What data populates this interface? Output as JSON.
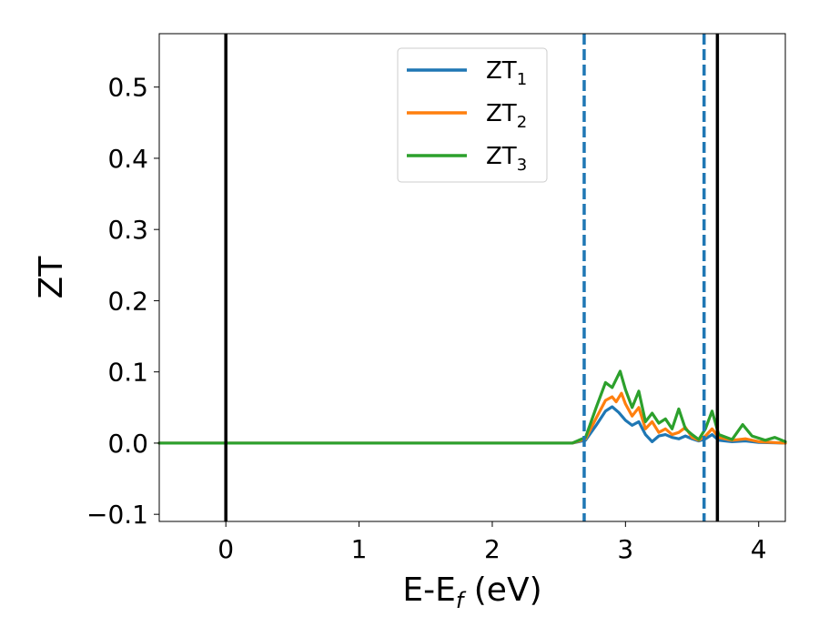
{
  "chart_data": {
    "type": "line",
    "xlabel": {
      "main": "E-E",
      "sub": "f",
      "unit": " (eV)"
    },
    "ylabel": "ZT",
    "xlim": [
      -0.5,
      4.2
    ],
    "ylim": [
      -0.11,
      0.575
    ],
    "xticks": [
      0,
      1,
      2,
      3,
      4
    ],
    "yticks": [
      -0.1,
      0.0,
      0.1,
      0.2,
      0.3,
      0.4,
      0.5
    ],
    "xtick_labels": [
      "0",
      "1",
      "2",
      "3",
      "4"
    ],
    "ytick_labels": [
      "−0.1",
      "0.0",
      "0.1",
      "0.2",
      "0.3",
      "0.4",
      "0.5"
    ],
    "grid": false,
    "legend_position": "top-center",
    "vlines": [
      {
        "x": 0.0,
        "style": "solid",
        "color": "#000000"
      },
      {
        "x": 2.69,
        "style": "dashed",
        "color": "#1f77b4"
      },
      {
        "x": 3.59,
        "style": "dashed",
        "color": "#1f77b4"
      },
      {
        "x": 3.69,
        "style": "solid",
        "color": "#000000"
      }
    ],
    "series": [
      {
        "name": "ZT",
        "sub": "1",
        "color": "#1f77b4",
        "points": [
          [
            -0.5,
            0
          ],
          [
            2.6,
            0
          ],
          [
            2.7,
            0.004
          ],
          [
            2.78,
            0.025
          ],
          [
            2.85,
            0.045
          ],
          [
            2.9,
            0.051
          ],
          [
            2.95,
            0.043
          ],
          [
            3.0,
            0.032
          ],
          [
            3.05,
            0.025
          ],
          [
            3.1,
            0.03
          ],
          [
            3.15,
            0.012
          ],
          [
            3.2,
            0.002
          ],
          [
            3.25,
            0.01
          ],
          [
            3.3,
            0.012
          ],
          [
            3.35,
            0.008
          ],
          [
            3.4,
            0.006
          ],
          [
            3.45,
            0.01
          ],
          [
            3.5,
            0.006
          ],
          [
            3.55,
            0.003
          ],
          [
            3.6,
            0.006
          ],
          [
            3.65,
            0.012
          ],
          [
            3.7,
            0.004
          ],
          [
            3.8,
            0.002
          ],
          [
            3.9,
            0.003
          ],
          [
            4.0,
            0.001
          ],
          [
            4.2,
            0
          ]
        ]
      },
      {
        "name": "ZT",
        "sub": "2",
        "color": "#ff7f0e",
        "points": [
          [
            -0.5,
            0
          ],
          [
            2.6,
            0
          ],
          [
            2.7,
            0.006
          ],
          [
            2.78,
            0.035
          ],
          [
            2.85,
            0.06
          ],
          [
            2.9,
            0.065
          ],
          [
            2.93,
            0.058
          ],
          [
            2.97,
            0.07
          ],
          [
            3.0,
            0.055
          ],
          [
            3.05,
            0.038
          ],
          [
            3.1,
            0.05
          ],
          [
            3.15,
            0.02
          ],
          [
            3.2,
            0.03
          ],
          [
            3.25,
            0.015
          ],
          [
            3.3,
            0.02
          ],
          [
            3.35,
            0.012
          ],
          [
            3.4,
            0.015
          ],
          [
            3.45,
            0.022
          ],
          [
            3.5,
            0.008
          ],
          [
            3.55,
            0.004
          ],
          [
            3.6,
            0.01
          ],
          [
            3.65,
            0.02
          ],
          [
            3.7,
            0.008
          ],
          [
            3.8,
            0.004
          ],
          [
            3.9,
            0.006
          ],
          [
            4.0,
            0.002
          ],
          [
            4.2,
            0
          ]
        ]
      },
      {
        "name": "ZT",
        "sub": "3",
        "color": "#2ca02c",
        "points": [
          [
            -0.5,
            0
          ],
          [
            2.6,
            0
          ],
          [
            2.7,
            0.008
          ],
          [
            2.78,
            0.05
          ],
          [
            2.85,
            0.085
          ],
          [
            2.9,
            0.078
          ],
          [
            2.96,
            0.101
          ],
          [
            3.0,
            0.075
          ],
          [
            3.05,
            0.05
          ],
          [
            3.1,
            0.073
          ],
          [
            3.15,
            0.03
          ],
          [
            3.2,
            0.042
          ],
          [
            3.25,
            0.028
          ],
          [
            3.3,
            0.034
          ],
          [
            3.35,
            0.02
          ],
          [
            3.4,
            0.048
          ],
          [
            3.45,
            0.02
          ],
          [
            3.5,
            0.012
          ],
          [
            3.55,
            0.005
          ],
          [
            3.6,
            0.02
          ],
          [
            3.65,
            0.045
          ],
          [
            3.7,
            0.012
          ],
          [
            3.8,
            0.005
          ],
          [
            3.88,
            0.026
          ],
          [
            3.95,
            0.01
          ],
          [
            4.05,
            0.004
          ],
          [
            4.12,
            0.008
          ],
          [
            4.2,
            0.002
          ]
        ]
      }
    ]
  }
}
